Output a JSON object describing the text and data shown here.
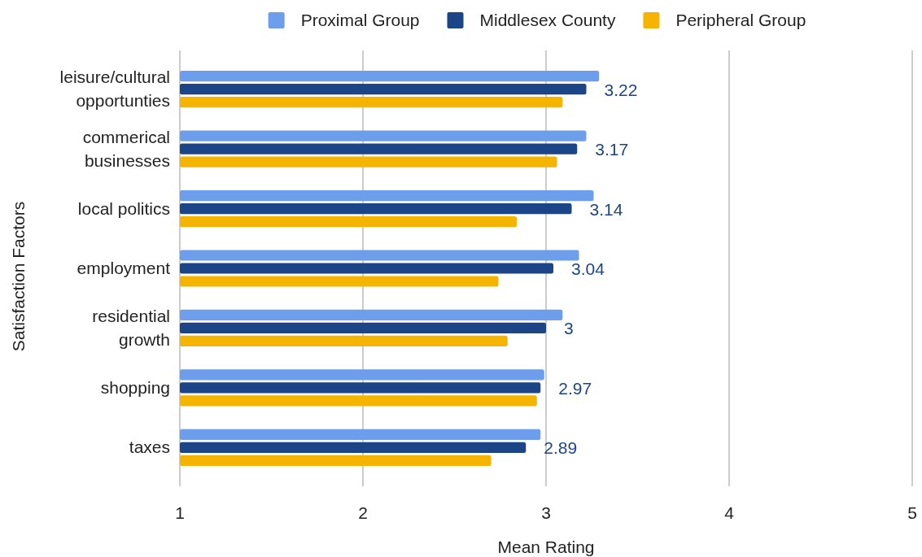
{
  "chart_data": {
    "type": "bar",
    "orientation": "horizontal",
    "categories": [
      "leisure/cultural opportunties",
      "commerical businesses",
      "local politics",
      "employment",
      "residential growth",
      "shopping",
      "taxes"
    ],
    "series": [
      {
        "name": "Proximal Group",
        "color": "#6d9eeb",
        "values": [
          3.29,
          3.22,
          3.26,
          3.18,
          3.09,
          2.99,
          2.97
        ]
      },
      {
        "name": "Middlesex County",
        "color": "#1c4587",
        "values": [
          3.22,
          3.17,
          3.14,
          3.04,
          3,
          2.97,
          2.89
        ],
        "value_labels": [
          "3.22",
          "3.17",
          "3.14",
          "3.04",
          "3",
          "2.97",
          "2.89"
        ]
      },
      {
        "name": "Peripheral Group",
        "color": "#f4b400",
        "values": [
          3.09,
          3.06,
          2.84,
          2.74,
          2.79,
          2.95,
          2.7
        ]
      }
    ],
    "xlabel": "Mean Rating",
    "ylabel": "Satisfaction Factors",
    "xlim": [
      1,
      5
    ],
    "xticks": [
      1,
      2,
      3,
      4,
      5
    ],
    "grid": "x",
    "legend": "top"
  }
}
